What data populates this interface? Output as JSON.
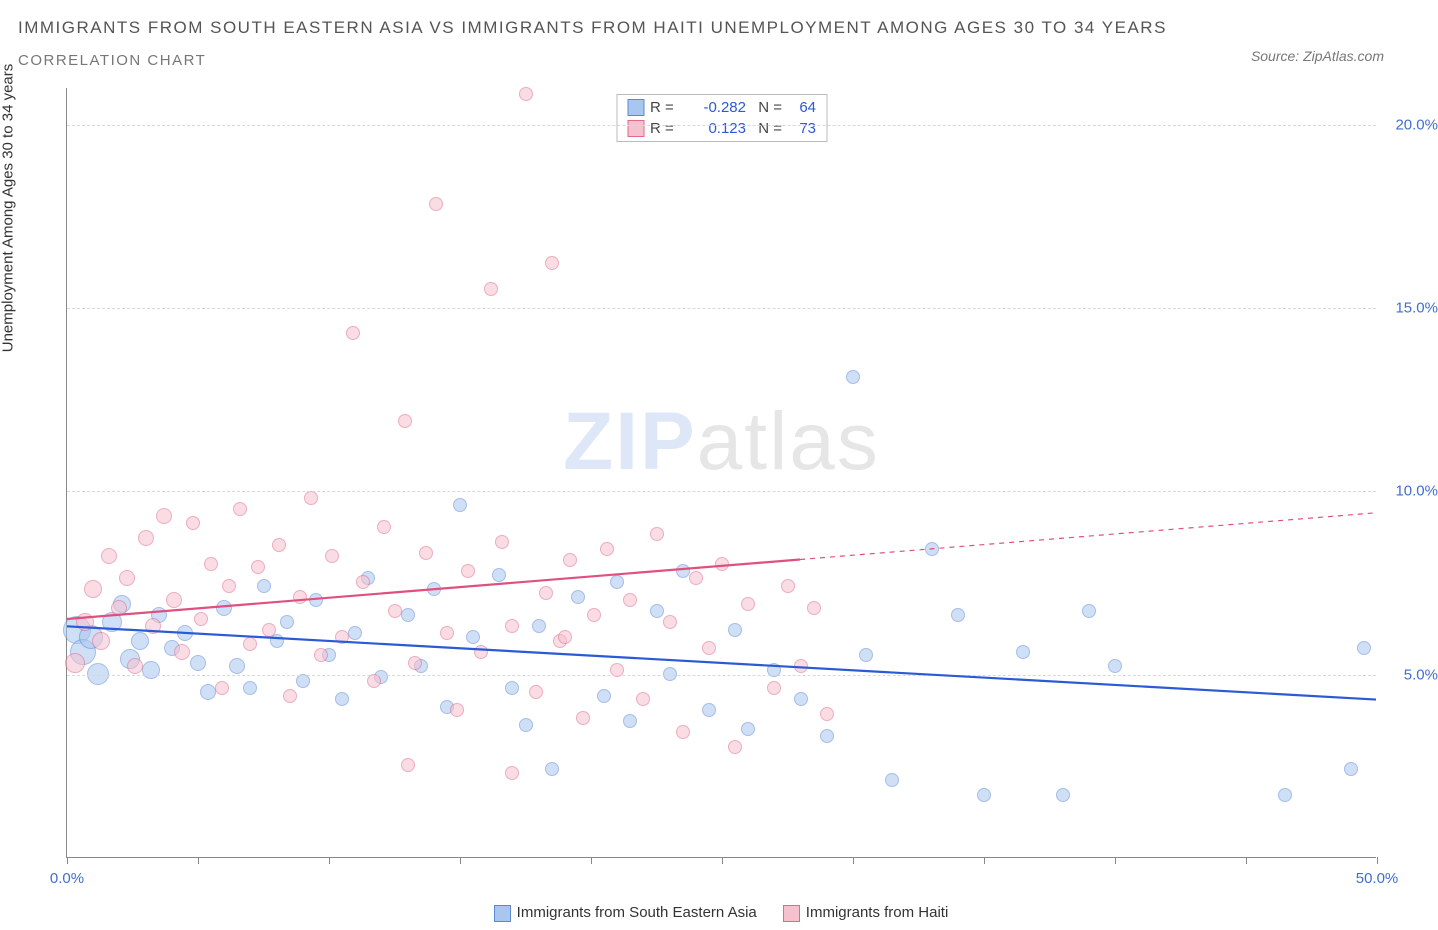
{
  "title": "IMMIGRANTS FROM SOUTH EASTERN ASIA VS IMMIGRANTS FROM HAITI UNEMPLOYMENT AMONG AGES 30 TO 34 YEARS",
  "subtitle": "CORRELATION CHART",
  "source_prefix": "Source: ",
  "source_name": "ZipAtlas.com",
  "y_axis_title": "Unemployment Among Ages 30 to 34 years",
  "watermark": {
    "bold": "ZIP",
    "rest": "atlas"
  },
  "chart": {
    "type": "scatter",
    "background_color": "#ffffff",
    "grid_color": "#d8d8d8",
    "axis_color": "#888888",
    "xlim": [
      0,
      50
    ],
    "ylim": [
      0,
      21
    ],
    "x_tick_positions": [
      0,
      5,
      10,
      15,
      20,
      25,
      30,
      35,
      40,
      45,
      50
    ],
    "x_tick_labels": {
      "0": "0.0%",
      "50": "50.0%"
    },
    "y_ticks": [
      5,
      10,
      15,
      20
    ],
    "y_tick_labels": {
      "5": "5.0%",
      "10": "10.0%",
      "15": "15.0%",
      "20": "20.0%"
    },
    "y_label_color": "#3f6fcf",
    "x_label_color": "#3f6fcf",
    "marker_radius_range": [
      6,
      14
    ],
    "marker_stroke_width": 1.2,
    "marker_opacity": 0.55,
    "trend_line_width": 2.2
  },
  "series": [
    {
      "key": "sea",
      "label": "Immigrants from South Eastern Asia",
      "fill": "#a9c6ef",
      "stroke": "#5a89d6",
      "line_color": "#2a5ad4",
      "R": "-0.282",
      "N": "64",
      "trend": {
        "x1": 0,
        "y1": 6.3,
        "x2": 50,
        "y2": 4.3,
        "solid_until_x": 50
      },
      "points": [
        {
          "x": 0.4,
          "y": 6.2,
          "r": 14
        },
        {
          "x": 0.6,
          "y": 5.6,
          "r": 13
        },
        {
          "x": 0.9,
          "y": 6.0,
          "r": 12
        },
        {
          "x": 1.2,
          "y": 5.0,
          "r": 11
        },
        {
          "x": 1.7,
          "y": 6.4,
          "r": 10
        },
        {
          "x": 2.1,
          "y": 6.9,
          "r": 9
        },
        {
          "x": 2.4,
          "y": 5.4,
          "r": 10
        },
        {
          "x": 2.8,
          "y": 5.9,
          "r": 9
        },
        {
          "x": 3.2,
          "y": 5.1,
          "r": 9
        },
        {
          "x": 3.5,
          "y": 6.6,
          "r": 8
        },
        {
          "x": 4.0,
          "y": 5.7,
          "r": 8
        },
        {
          "x": 4.5,
          "y": 6.1,
          "r": 8
        },
        {
          "x": 5.0,
          "y": 5.3,
          "r": 8
        },
        {
          "x": 5.4,
          "y": 4.5,
          "r": 8
        },
        {
          "x": 6.0,
          "y": 6.8,
          "r": 8
        },
        {
          "x": 6.5,
          "y": 5.2,
          "r": 8
        },
        {
          "x": 7.0,
          "y": 4.6,
          "r": 7
        },
        {
          "x": 7.5,
          "y": 7.4,
          "r": 7
        },
        {
          "x": 8.0,
          "y": 5.9,
          "r": 7
        },
        {
          "x": 8.4,
          "y": 6.4,
          "r": 7
        },
        {
          "x": 9.0,
          "y": 4.8,
          "r": 7
        },
        {
          "x": 9.5,
          "y": 7.0,
          "r": 7
        },
        {
          "x": 10.0,
          "y": 5.5,
          "r": 7
        },
        {
          "x": 10.5,
          "y": 4.3,
          "r": 7
        },
        {
          "x": 11.0,
          "y": 6.1,
          "r": 7
        },
        {
          "x": 11.5,
          "y": 7.6,
          "r": 7
        },
        {
          "x": 12.0,
          "y": 4.9,
          "r": 7
        },
        {
          "x": 13.0,
          "y": 6.6,
          "r": 7
        },
        {
          "x": 13.5,
          "y": 5.2,
          "r": 7
        },
        {
          "x": 14.0,
          "y": 7.3,
          "r": 7
        },
        {
          "x": 14.5,
          "y": 4.1,
          "r": 7
        },
        {
          "x": 15.0,
          "y": 9.6,
          "r": 7
        },
        {
          "x": 15.5,
          "y": 6.0,
          "r": 7
        },
        {
          "x": 16.5,
          "y": 7.7,
          "r": 7
        },
        {
          "x": 17.0,
          "y": 4.6,
          "r": 7
        },
        {
          "x": 17.5,
          "y": 3.6,
          "r": 7
        },
        {
          "x": 18.0,
          "y": 6.3,
          "r": 7
        },
        {
          "x": 18.5,
          "y": 2.4,
          "r": 7
        },
        {
          "x": 19.5,
          "y": 7.1,
          "r": 7
        },
        {
          "x": 20.5,
          "y": 4.4,
          "r": 7
        },
        {
          "x": 21.0,
          "y": 7.5,
          "r": 7
        },
        {
          "x": 21.5,
          "y": 3.7,
          "r": 7
        },
        {
          "x": 22.5,
          "y": 6.7,
          "r": 7
        },
        {
          "x": 23.0,
          "y": 5.0,
          "r": 7
        },
        {
          "x": 23.5,
          "y": 7.8,
          "r": 7
        },
        {
          "x": 24.5,
          "y": 4.0,
          "r": 7
        },
        {
          "x": 25.5,
          "y": 6.2,
          "r": 7
        },
        {
          "x": 26.0,
          "y": 3.5,
          "r": 7
        },
        {
          "x": 27.0,
          "y": 5.1,
          "r": 7
        },
        {
          "x": 28.0,
          "y": 4.3,
          "r": 7
        },
        {
          "x": 29.0,
          "y": 3.3,
          "r": 7
        },
        {
          "x": 30.0,
          "y": 13.1,
          "r": 7
        },
        {
          "x": 30.5,
          "y": 5.5,
          "r": 7
        },
        {
          "x": 31.5,
          "y": 2.1,
          "r": 7
        },
        {
          "x": 33.0,
          "y": 8.4,
          "r": 7
        },
        {
          "x": 34.0,
          "y": 6.6,
          "r": 7
        },
        {
          "x": 35.0,
          "y": 1.7,
          "r": 7
        },
        {
          "x": 36.5,
          "y": 5.6,
          "r": 7
        },
        {
          "x": 38.0,
          "y": 1.7,
          "r": 7
        },
        {
          "x": 39.0,
          "y": 6.7,
          "r": 7
        },
        {
          "x": 40.0,
          "y": 5.2,
          "r": 7
        },
        {
          "x": 46.5,
          "y": 1.7,
          "r": 7
        },
        {
          "x": 49.0,
          "y": 2.4,
          "r": 7
        },
        {
          "x": 49.5,
          "y": 5.7,
          "r": 7
        }
      ]
    },
    {
      "key": "haiti",
      "label": "Immigrants from Haiti",
      "fill": "#f6c1cf",
      "stroke": "#e06a8a",
      "line_color": "#e0507f",
      "R": "0.123",
      "N": "73",
      "trend": {
        "x1": 0,
        "y1": 6.5,
        "x2": 50,
        "y2": 9.4,
        "solid_until_x": 28
      },
      "points": [
        {
          "x": 0.3,
          "y": 5.3,
          "r": 10
        },
        {
          "x": 0.7,
          "y": 6.4,
          "r": 9
        },
        {
          "x": 1.0,
          "y": 7.3,
          "r": 9
        },
        {
          "x": 1.3,
          "y": 5.9,
          "r": 9
        },
        {
          "x": 1.6,
          "y": 8.2,
          "r": 8
        },
        {
          "x": 2.0,
          "y": 6.8,
          "r": 8
        },
        {
          "x": 2.3,
          "y": 7.6,
          "r": 8
        },
        {
          "x": 2.6,
          "y": 5.2,
          "r": 8
        },
        {
          "x": 3.0,
          "y": 8.7,
          "r": 8
        },
        {
          "x": 3.3,
          "y": 6.3,
          "r": 8
        },
        {
          "x": 3.7,
          "y": 9.3,
          "r": 8
        },
        {
          "x": 4.1,
          "y": 7.0,
          "r": 8
        },
        {
          "x": 4.4,
          "y": 5.6,
          "r": 8
        },
        {
          "x": 4.8,
          "y": 9.1,
          "r": 7
        },
        {
          "x": 5.1,
          "y": 6.5,
          "r": 7
        },
        {
          "x": 5.5,
          "y": 8.0,
          "r": 7
        },
        {
          "x": 5.9,
          "y": 4.6,
          "r": 7
        },
        {
          "x": 6.2,
          "y": 7.4,
          "r": 7
        },
        {
          "x": 6.6,
          "y": 9.5,
          "r": 7
        },
        {
          "x": 7.0,
          "y": 5.8,
          "r": 7
        },
        {
          "x": 7.3,
          "y": 7.9,
          "r": 7
        },
        {
          "x": 7.7,
          "y": 6.2,
          "r": 7
        },
        {
          "x": 8.1,
          "y": 8.5,
          "r": 7
        },
        {
          "x": 8.5,
          "y": 4.4,
          "r": 7
        },
        {
          "x": 8.9,
          "y": 7.1,
          "r": 7
        },
        {
          "x": 9.3,
          "y": 9.8,
          "r": 7
        },
        {
          "x": 9.7,
          "y": 5.5,
          "r": 7
        },
        {
          "x": 10.1,
          "y": 8.2,
          "r": 7
        },
        {
          "x": 10.5,
          "y": 6.0,
          "r": 7
        },
        {
          "x": 10.9,
          "y": 14.3,
          "r": 7
        },
        {
          "x": 11.3,
          "y": 7.5,
          "r": 7
        },
        {
          "x": 11.7,
          "y": 4.8,
          "r": 7
        },
        {
          "x": 12.1,
          "y": 9.0,
          "r": 7
        },
        {
          "x": 12.5,
          "y": 6.7,
          "r": 7
        },
        {
          "x": 12.9,
          "y": 11.9,
          "r": 7
        },
        {
          "x": 13.3,
          "y": 5.3,
          "r": 7
        },
        {
          "x": 13.7,
          "y": 8.3,
          "r": 7
        },
        {
          "x": 14.1,
          "y": 17.8,
          "r": 7
        },
        {
          "x": 14.5,
          "y": 6.1,
          "r": 7
        },
        {
          "x": 14.9,
          "y": 4.0,
          "r": 7
        },
        {
          "x": 15.3,
          "y": 7.8,
          "r": 7
        },
        {
          "x": 15.8,
          "y": 5.6,
          "r": 7
        },
        {
          "x": 16.2,
          "y": 15.5,
          "r": 7
        },
        {
          "x": 16.6,
          "y": 8.6,
          "r": 7
        },
        {
          "x": 17.0,
          "y": 6.3,
          "r": 7
        },
        {
          "x": 17.5,
          "y": 20.8,
          "r": 7
        },
        {
          "x": 17.9,
          "y": 4.5,
          "r": 7
        },
        {
          "x": 18.3,
          "y": 7.2,
          "r": 7
        },
        {
          "x": 18.5,
          "y": 16.2,
          "r": 7
        },
        {
          "x": 18.8,
          "y": 5.9,
          "r": 7
        },
        {
          "x": 19.2,
          "y": 8.1,
          "r": 7
        },
        {
          "x": 19.7,
          "y": 3.8,
          "r": 7
        },
        {
          "x": 20.1,
          "y": 6.6,
          "r": 7
        },
        {
          "x": 20.6,
          "y": 8.4,
          "r": 7
        },
        {
          "x": 21.0,
          "y": 5.1,
          "r": 7
        },
        {
          "x": 21.5,
          "y": 7.0,
          "r": 7
        },
        {
          "x": 22.0,
          "y": 4.3,
          "r": 7
        },
        {
          "x": 22.5,
          "y": 8.8,
          "r": 7
        },
        {
          "x": 23.0,
          "y": 6.4,
          "r": 7
        },
        {
          "x": 23.5,
          "y": 3.4,
          "r": 7
        },
        {
          "x": 24.0,
          "y": 7.6,
          "r": 7
        },
        {
          "x": 24.5,
          "y": 5.7,
          "r": 7
        },
        {
          "x": 25.0,
          "y": 8.0,
          "r": 7
        },
        {
          "x": 25.5,
          "y": 3.0,
          "r": 7
        },
        {
          "x": 26.0,
          "y": 6.9,
          "r": 7
        },
        {
          "x": 27.0,
          "y": 4.6,
          "r": 7
        },
        {
          "x": 27.5,
          "y": 7.4,
          "r": 7
        },
        {
          "x": 28.0,
          "y": 5.2,
          "r": 7
        },
        {
          "x": 28.5,
          "y": 6.8,
          "r": 7
        },
        {
          "x": 29.0,
          "y": 3.9,
          "r": 7
        },
        {
          "x": 13.0,
          "y": 2.5,
          "r": 7
        },
        {
          "x": 17.0,
          "y": 2.3,
          "r": 7
        },
        {
          "x": 19.0,
          "y": 6.0,
          "r": 7
        }
      ]
    }
  ],
  "top_legend": {
    "r_label": "R =",
    "n_label": "N ="
  }
}
